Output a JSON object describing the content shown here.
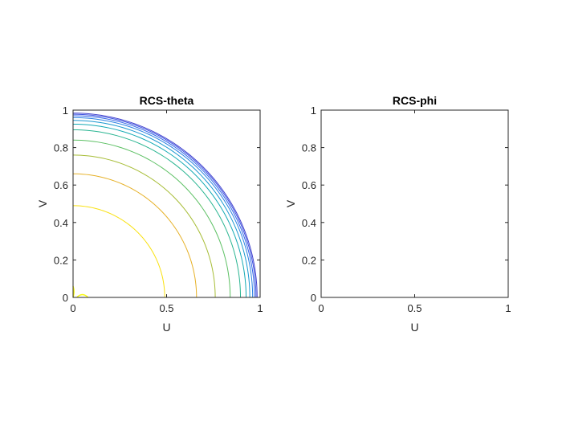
{
  "chart_data": [
    {
      "type": "contour",
      "title": "RCS-theta",
      "xlabel": "U",
      "ylabel": "V",
      "xlim": [
        0,
        1
      ],
      "ylim": [
        0,
        1
      ],
      "xticks": [
        "0",
        "0.5",
        "1"
      ],
      "yticks": [
        "0",
        "0.2",
        "0.4",
        "0.6",
        "0.8",
        "1"
      ],
      "grid": false,
      "colormap": "parula",
      "contour_levels": [
        {
          "radius": 0.49,
          "color": "#f9e10f"
        },
        {
          "radius": 0.66,
          "color": "#e6b128"
        },
        {
          "radius": 0.76,
          "color": "#a7bd36"
        },
        {
          "radius": 0.84,
          "color": "#5cc063"
        },
        {
          "radius": 0.895,
          "color": "#2ab592"
        },
        {
          "radius": 0.925,
          "color": "#14aab4"
        },
        {
          "radius": 0.945,
          "color": "#1a98d0"
        },
        {
          "radius": 0.96,
          "color": "#2a82e2"
        },
        {
          "radius": 0.97,
          "color": "#3567e8"
        },
        {
          "radius": 0.978,
          "color": "#3d52e0"
        },
        {
          "radius": 0.984,
          "color": "#4040cc"
        }
      ],
      "center_blob": {
        "u": 0.03,
        "v": 0.02,
        "color": "#f9fb0e"
      }
    },
    {
      "type": "contour",
      "title": "RCS-phi",
      "xlabel": "U",
      "ylabel": "V",
      "xlim": [
        0,
        1
      ],
      "ylim": [
        0,
        1
      ],
      "xticks": [
        "0",
        "0.5",
        "1"
      ],
      "yticks": [
        "0",
        "0.2",
        "0.4",
        "0.6",
        "0.8",
        "1"
      ],
      "grid": false,
      "contour_levels": []
    }
  ]
}
